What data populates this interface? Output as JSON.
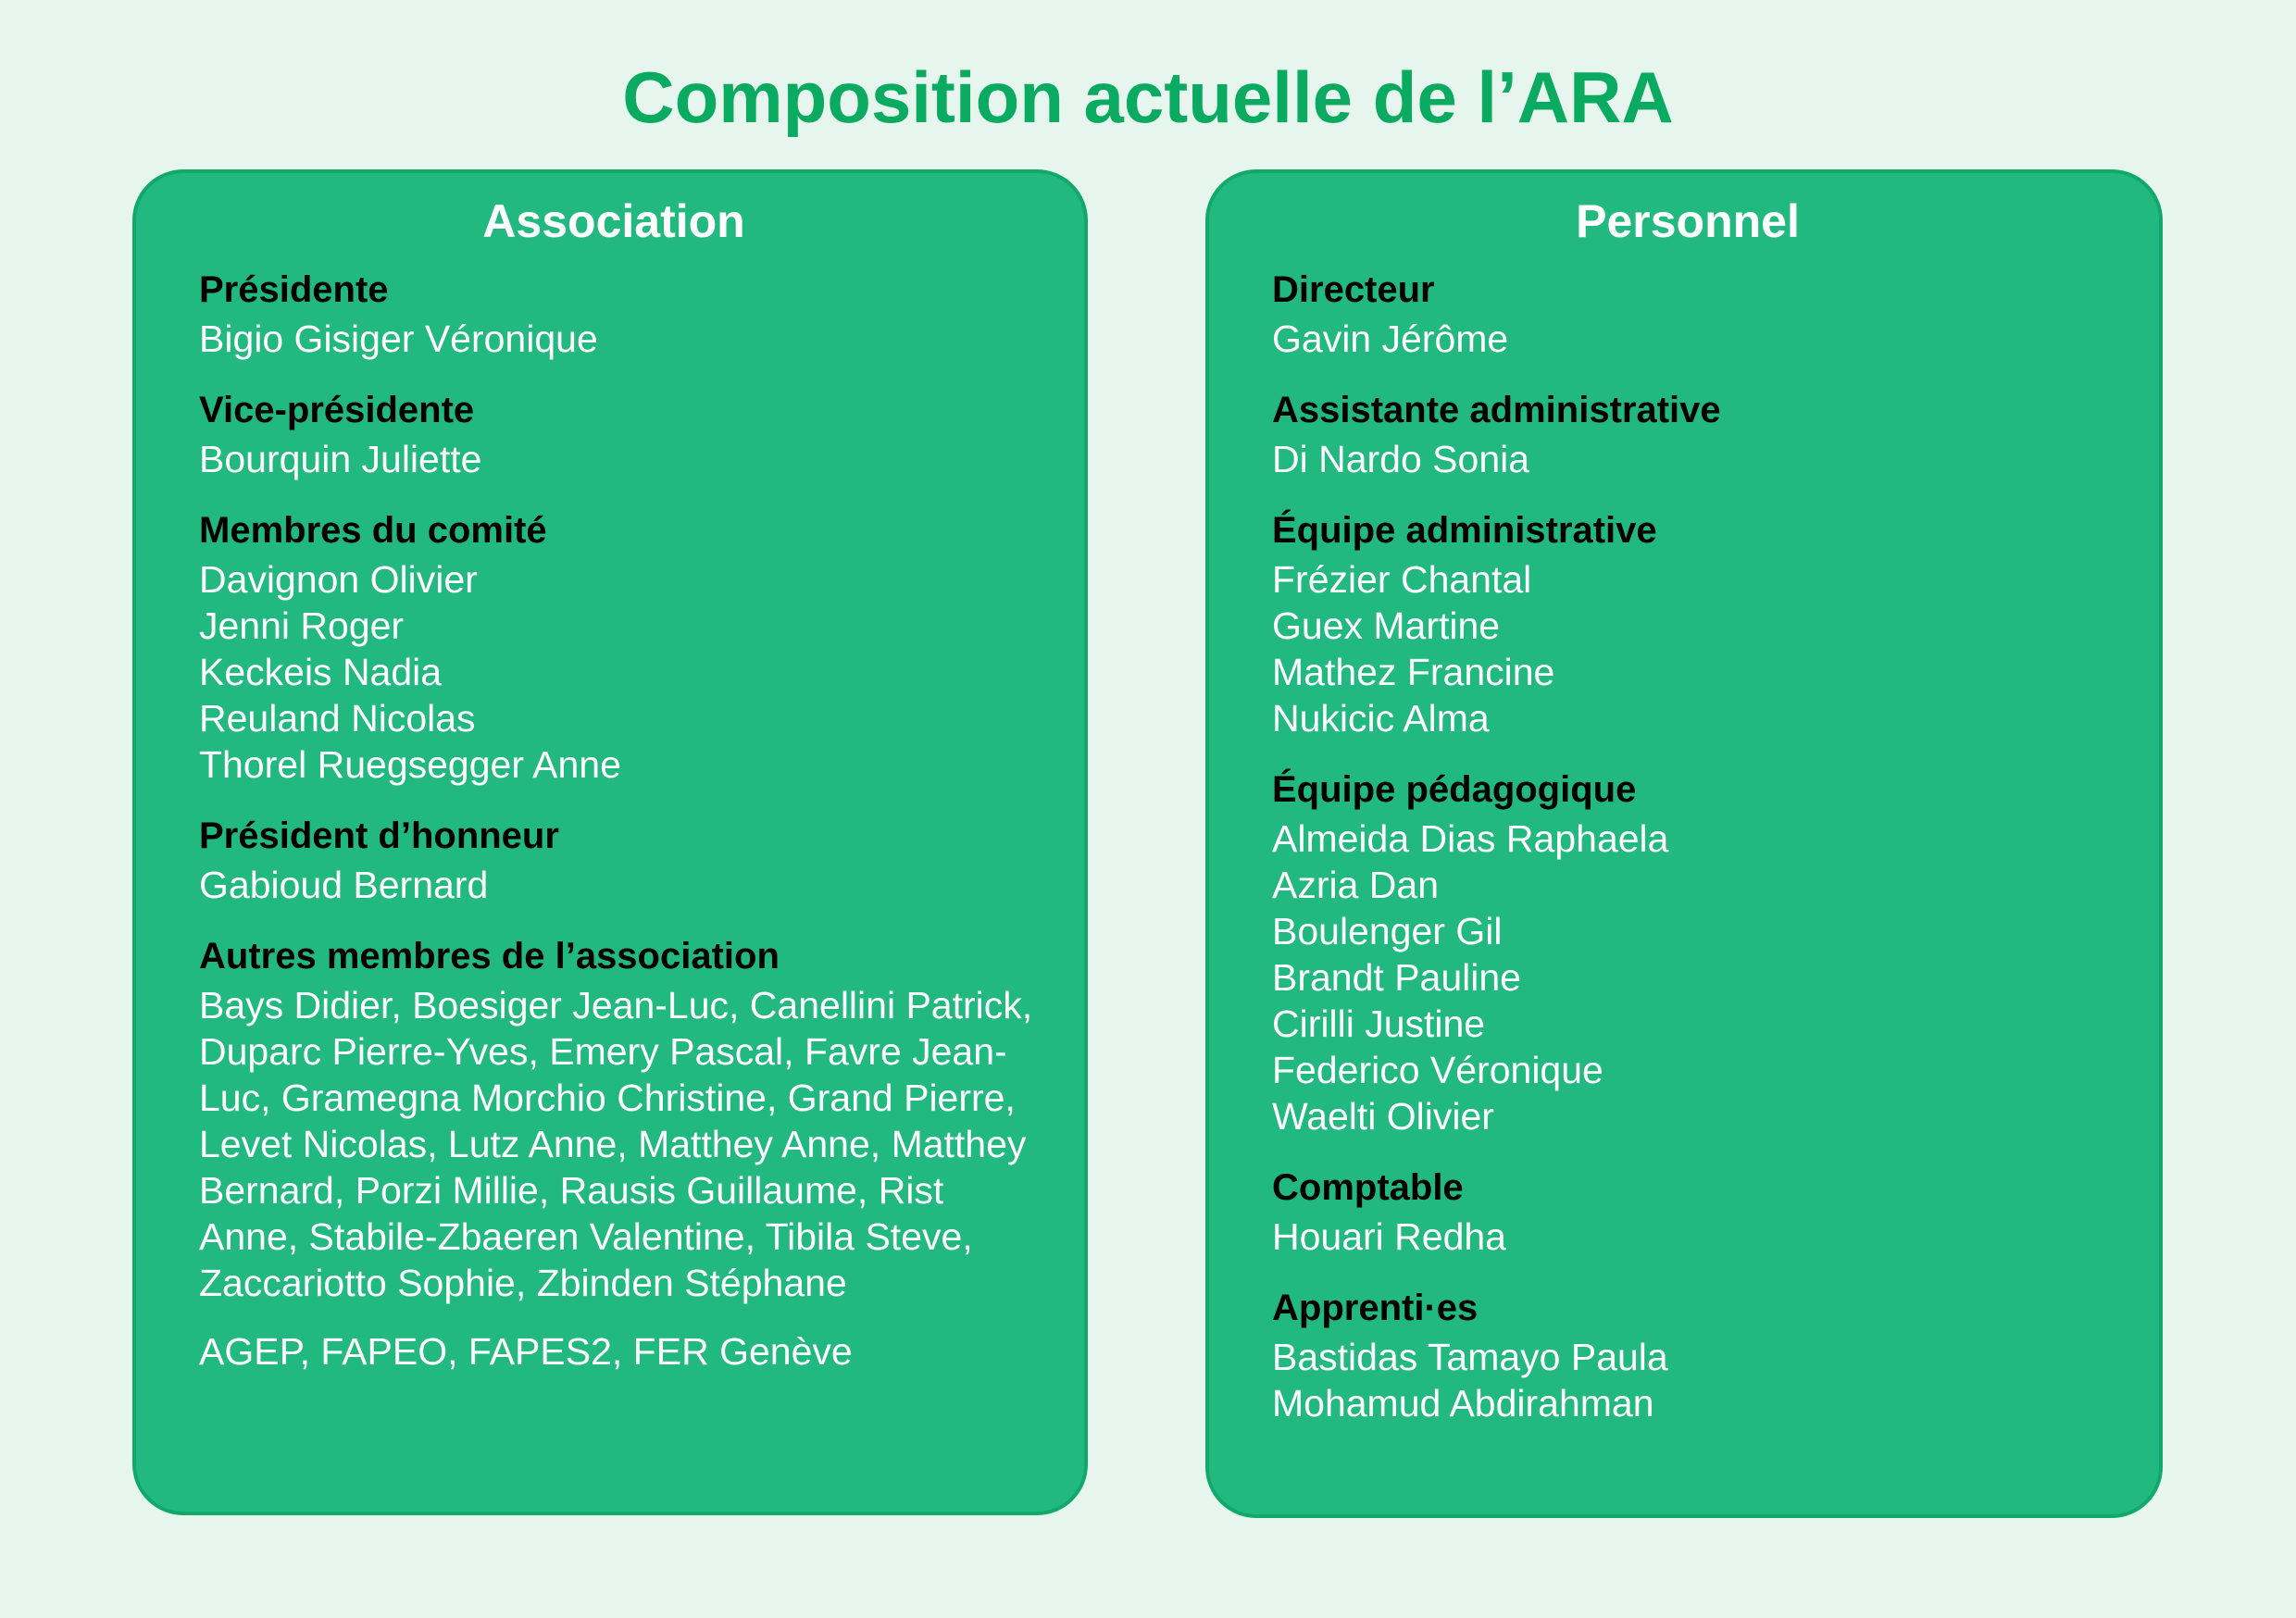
{
  "title": "Composition actuelle de l’ARA",
  "association": {
    "heading": "Association",
    "sections": [
      {
        "role": "Présidente",
        "names": [
          "Bigio Gisiger Véronique"
        ]
      },
      {
        "role": "Vice-présidente",
        "names": [
          "Bourquin Juliette"
        ]
      },
      {
        "role": "Membres du comité",
        "names": [
          "Davignon Olivier",
          "Jenni Roger",
          "Keckeis Nadia",
          "Reuland Nicolas",
          "Thorel Ruegsegger Anne"
        ]
      },
      {
        "role": "Président d’honneur",
        "names": [
          "Gabioud Bernard"
        ]
      },
      {
        "role": "Autres membres de l’association",
        "names": [
          "Bays Didier, Boesiger Jean-Luc, Canellini Patrick, Duparc Pierre-Yves, Emery Pascal, Favre Jean-Luc, Gramegna Morchio Christine, Grand Pierre, Levet Nicolas, Lutz Anne, Matthey Anne, Matthey Bernard, Porzi Millie, Rausis Guillaume, Rist Anne, Stabile-Zbaeren Valentine, Tibila Steve, Zaccariotto Sophie, Zbinden Stéphane"
        ]
      }
    ],
    "organisations": "AGEP, FAPEO, FAPES2, FER Genève"
  },
  "personnel": {
    "heading": "Personnel",
    "sections": [
      {
        "role": "Directeur",
        "names": [
          "Gavin Jérôme"
        ]
      },
      {
        "role": "Assistante administrative",
        "names": [
          "Di Nardo Sonia"
        ]
      },
      {
        "role": "Équipe administrative",
        "names": [
          "Frézier Chantal",
          "Guex Martine",
          "Mathez Francine",
          "Nukicic Alma"
        ]
      },
      {
        "role": "Équipe pédagogique",
        "names": [
          "Almeida Dias Raphaela",
          "Azria Dan",
          "Boulenger Gil",
          "Brandt Pauline",
          "Cirilli Justine",
          "Federico Véronique",
          "Waelti Olivier"
        ]
      },
      {
        "role": "Comptable",
        "names": [
          "Houari Redha"
        ]
      },
      {
        "role": "Apprenti·es",
        "names": [
          "Bastidas Tamayo Paula",
          "Mohamud Abdirahman"
        ]
      }
    ]
  },
  "colors": {
    "background": "#e6f6ee",
    "title": "#0aaa60",
    "card": "#22b981",
    "card_border": "#10a96a"
  }
}
